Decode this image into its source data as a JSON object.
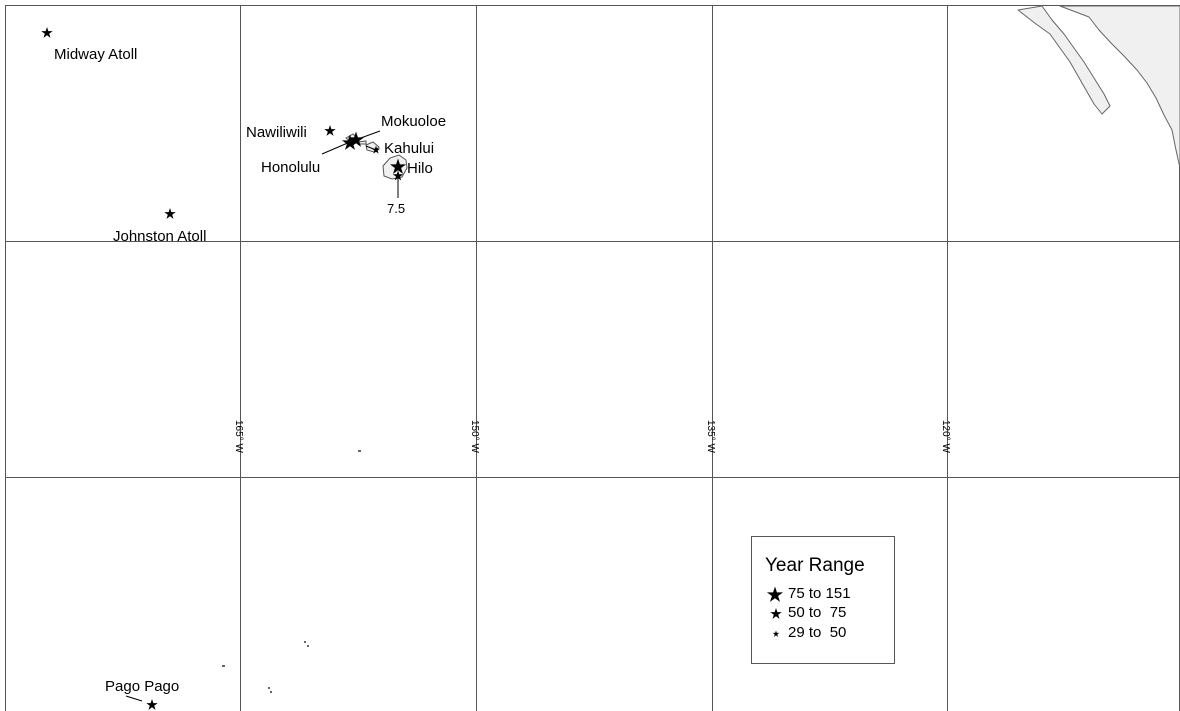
{
  "map": {
    "longitude_labels": [
      "165° W",
      "150° W",
      "135° W",
      "120° W"
    ],
    "stations": [
      {
        "name": "Midway Atoll",
        "size_class": "medium"
      },
      {
        "name": "Johnston Atoll",
        "size_class": "medium"
      },
      {
        "name": "Nawiliwili",
        "size_class": "medium"
      },
      {
        "name": "Mokuoloe",
        "size_class": "large"
      },
      {
        "name": "Honolulu",
        "size_class": "large"
      },
      {
        "name": "Kahului",
        "size_class": "small"
      },
      {
        "name": "Hilo",
        "size_class": "large"
      },
      {
        "name": "Pago Pago",
        "size_class": "medium"
      }
    ],
    "magnitude_note": "7.5",
    "land_color": "#f0f0f0",
    "grid_color": "#555555"
  },
  "legend": {
    "title": "Year Range",
    "items": [
      {
        "label": "75 to 151",
        "size_class": "large",
        "icon": "star-icon"
      },
      {
        "label": "50 to  75",
        "size_class": "medium",
        "icon": "star-icon"
      },
      {
        "label": "29 to  50",
        "size_class": "small",
        "icon": "star-icon"
      }
    ]
  }
}
